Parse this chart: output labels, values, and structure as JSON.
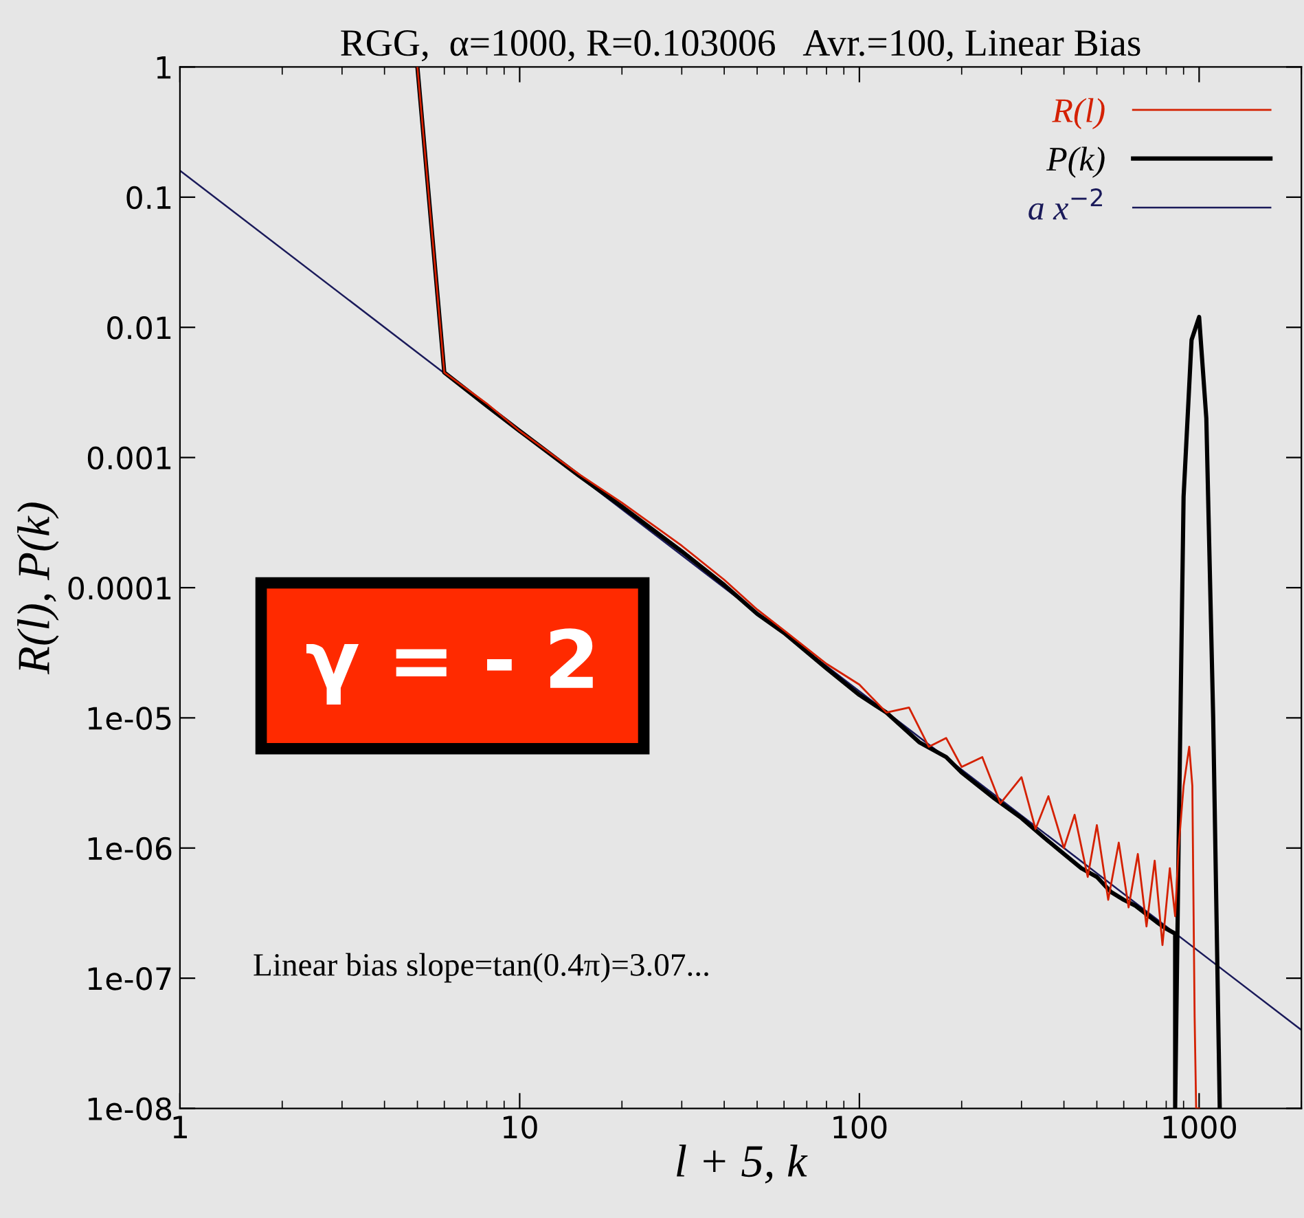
{
  "chart_data": {
    "type": "line",
    "title": "RGG,  α=1000, R=0.103006   Avr.=100, Linear Bias",
    "xlabel": "l + 5, k",
    "ylabel": "R(l), P(k)",
    "log": "xy",
    "grid": false,
    "legend": "top right",
    "xlim": [
      1,
      2000
    ],
    "ylim": [
      1e-08,
      1
    ],
    "xticks": [
      1,
      10,
      100,
      1000
    ],
    "yticks": [
      1,
      0.1,
      0.01,
      0.001,
      0.0001,
      {
        "value": 1e-05,
        "label": "1e-05"
      },
      {
        "value": 1e-06,
        "label": "1e-06"
      },
      {
        "value": 1e-07,
        "label": "1e-07"
      },
      {
        "value": 1e-08,
        "label": "1e-08"
      }
    ],
    "series": [
      {
        "name": "R(l)",
        "color": "#d42000",
        "x": [
          5,
          6,
          8,
          10,
          15,
          20,
          30,
          40,
          50,
          60,
          80,
          100,
          120,
          140,
          160,
          180,
          200,
          230,
          260,
          300,
          330,
          360,
          400,
          430,
          470,
          500,
          540,
          580,
          620,
          660,
          700,
          740,
          780,
          820,
          850,
          870,
          900,
          935,
          955,
          970,
          980,
          1000
        ],
        "values": [
          1,
          0.0045,
          0.0026,
          0.0016,
          0.00074,
          0.00045,
          0.00021,
          0.000115,
          6.8e-05,
          4.7e-05,
          2.6e-05,
          1.8e-05,
          1.1e-05,
          1.2e-05,
          6e-06,
          7e-06,
          4.2e-06,
          5e-06,
          2.2e-06,
          3.5e-06,
          1.4e-06,
          2.5e-06,
          1e-06,
          1.8e-06,
          6e-07,
          1.5e-06,
          4e-07,
          1.1e-06,
          3.5e-07,
          9e-07,
          2.5e-07,
          8e-07,
          1.8e-07,
          7e-07,
          3e-07,
          1e-06,
          3e-06,
          6e-06,
          3e-06,
          5e-08,
          1e-08,
          1e-08
        ]
      },
      {
        "name": "P(k)",
        "color": "#000000",
        "x": [
          5,
          6,
          8,
          10,
          15,
          20,
          30,
          40,
          50,
          60,
          80,
          100,
          120,
          150,
          180,
          200,
          250,
          300,
          350,
          400,
          450,
          500,
          550,
          600,
          650,
          700,
          750,
          800,
          850,
          850,
          870,
          900,
          950,
          1000,
          1050,
          1100,
          1150
        ],
        "values": [
          1,
          0.0045,
          0.0025,
          0.0016,
          0.00072,
          0.00042,
          0.00019,
          0.000105,
          6.3e-05,
          4.5e-05,
          2.4e-05,
          1.5e-05,
          1.1e-05,
          6.5e-06,
          5e-06,
          3.8e-06,
          2.4e-06,
          1.7e-06,
          1.2e-06,
          9e-07,
          7e-07,
          6e-07,
          4.6e-07,
          4e-07,
          3.6e-07,
          3.1e-07,
          2.7e-07,
          2.4e-07,
          2.2e-07,
          1e-08,
          1e-06,
          0.0005,
          0.008,
          0.012,
          0.002,
          1e-05,
          1e-08
        ]
      },
      {
        "name": "a x$^{−2}$",
        "color": "#1a1a5a",
        "x": [
          1,
          2000
        ],
        "values": [
          0.16,
          4e-08
        ]
      }
    ],
    "annotations": [
      "γ = - 2",
      "Linear bias slope=tan(0.4π)=3.07..."
    ]
  }
}
